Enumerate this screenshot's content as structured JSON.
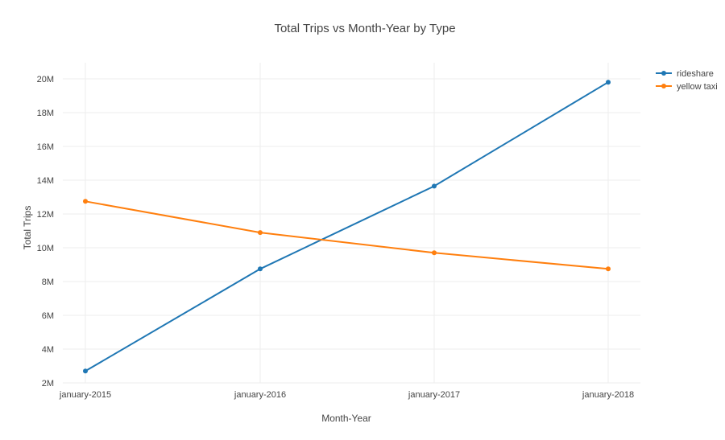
{
  "chart_data": {
    "type": "line",
    "title": "Total Trips vs Month-Year by Type",
    "xlabel": "Month-Year",
    "ylabel": "Total Trips",
    "categories": [
      "january-2015",
      "january-2016",
      "january-2017",
      "january-2018"
    ],
    "ylim": [
      2000000,
      21000000
    ],
    "yticks": [
      2000000,
      4000000,
      6000000,
      8000000,
      10000000,
      12000000,
      14000000,
      16000000,
      18000000,
      20000000
    ],
    "ytick_labels": [
      "2M",
      "4M",
      "6M",
      "8M",
      "10M",
      "12M",
      "14M",
      "16M",
      "18M",
      "20M"
    ],
    "grid": true,
    "legend_position": "top-right",
    "series": [
      {
        "name": "rideshare",
        "color": "#1f77b4",
        "values": [
          2700000,
          8750000,
          13650000,
          19800000
        ]
      },
      {
        "name": "yellow taxi",
        "color": "#ff7f0e",
        "values": [
          12750000,
          10900000,
          9700000,
          8750000
        ]
      }
    ]
  }
}
